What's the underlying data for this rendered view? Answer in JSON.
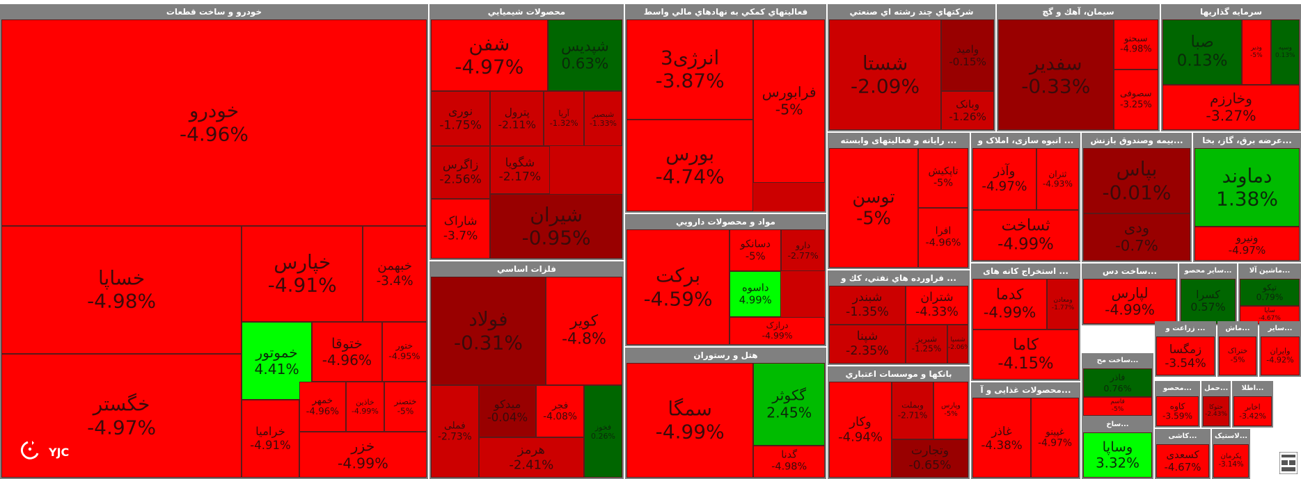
{
  "colors": {
    "header": "#808080",
    "neg_strong": "#ff0000",
    "neg_mid": "#cc0000",
    "neg_dark": "#990000",
    "pos_light": "#00ff00",
    "pos_mid": "#00bb00",
    "pos_dark": "#006600"
  },
  "logo": {
    "text": "YJC"
  },
  "chart_data": {
    "type": "treemap",
    "sectors": [
      {
        "name": "خودرو و ساخت قطعات",
        "items": [
          {
            "symbol": "خودرو",
            "change": "-4.96%",
            "value": -4.96
          },
          {
            "symbol": "خساپا",
            "change": "-4.98%",
            "value": -4.98
          },
          {
            "symbol": "خپارس",
            "change": "-4.91%",
            "value": -4.91
          },
          {
            "symbol": "خبهمن",
            "change": "-3.4%",
            "value": -3.4
          },
          {
            "symbol": "خگستر",
            "change": "-4.97%",
            "value": -4.97
          },
          {
            "symbol": "خموتور",
            "change": "4.41%",
            "value": 4.41
          },
          {
            "symbol": "ختوقا",
            "change": "-4.96%",
            "value": -4.96
          },
          {
            "symbol": "ختور",
            "change": "-4.95%",
            "value": -4.95
          },
          {
            "symbol": "خرامیا",
            "change": "-4.91%",
            "value": -4.91
          },
          {
            "symbol": "خمهر",
            "change": "-4.96%",
            "value": -4.96
          },
          {
            "symbol": "خاذین",
            "change": "-4.99%",
            "value": -4.99
          },
          {
            "symbol": "ختصنر",
            "change": "-5%",
            "value": -5
          },
          {
            "symbol": "خزر",
            "change": "-4.99%",
            "value": -4.99
          }
        ]
      },
      {
        "name": "محصولات شيميايي",
        "items": [
          {
            "symbol": "شفن",
            "change": "-4.97%",
            "value": -4.97
          },
          {
            "symbol": "شپدیس",
            "change": "0.63%",
            "value": 0.63
          },
          {
            "symbol": "نوری",
            "change": "-1.75%",
            "value": -1.75
          },
          {
            "symbol": "پترول",
            "change": "-2.11%",
            "value": -2.11
          },
          {
            "symbol": "آریا",
            "change": "-1.32%",
            "value": -1.32
          },
          {
            "symbol": "شبصیر",
            "change": "-1.33%",
            "value": -1.33
          },
          {
            "symbol": "شگویا",
            "change": "-2.17%",
            "value": -2.17
          },
          {
            "symbol": "زاگرس",
            "change": "-2.56%",
            "value": -2.56
          },
          {
            "symbol": "شاراک",
            "change": "-3.7%",
            "value": -3.7
          },
          {
            "symbol": "شیران",
            "change": "-0.95%",
            "value": -0.95
          }
        ]
      },
      {
        "name": "فعاليتهاي كمكي به نهادهاي مالي واسط",
        "items": [
          {
            "symbol": "انرژی3",
            "change": "-3.87%",
            "value": -3.87
          },
          {
            "symbol": "فرابورس",
            "change": "-5%",
            "value": -5
          },
          {
            "symbol": "بورس",
            "change": "-4.74%",
            "value": -4.74
          }
        ]
      },
      {
        "name": "شركتهاي چند رشته اي صنعتي",
        "items": [
          {
            "symbol": "شستا",
            "change": "-2.09%",
            "value": -2.09
          },
          {
            "symbol": "وامید",
            "change": "-0.15%",
            "value": -0.15
          },
          {
            "symbol": "وبانک",
            "change": "-1.26%",
            "value": -1.26
          }
        ]
      },
      {
        "name": "سيمان، آهك و گچ",
        "items": [
          {
            "symbol": "سفدیر",
            "change": "-0.33%",
            "value": -0.33
          },
          {
            "symbol": "سبحنو",
            "change": "-4.98%",
            "value": -4.98
          },
          {
            "symbol": "سصوفی",
            "change": "-3.25%",
            "value": -3.25
          }
        ]
      },
      {
        "name": "سرمايه گذاريها",
        "items": [
          {
            "symbol": "صبا",
            "change": "0.13%",
            "value": 0.13
          },
          {
            "symbol": "ودیر",
            "change": "-5%",
            "value": -5
          },
          {
            "symbol": "وسپه",
            "change": "0.13%",
            "value": 0.13
          },
          {
            "symbol": "وخارزم",
            "change": "-3.27%",
            "value": -3.27
          }
        ]
      },
      {
        "name": "مواد و محصولات دارويي",
        "items": [
          {
            "symbol": "برکت",
            "change": "-4.59%",
            "value": -4.59
          },
          {
            "symbol": "دارو",
            "change": "-2.77%",
            "value": -2.77
          },
          {
            "symbol": "دسانکو",
            "change": "-5%",
            "value": -5
          },
          {
            "symbol": "داسوه",
            "change": "4.99%",
            "value": 4.99
          },
          {
            "symbol": "درازک",
            "change": "-4.99%",
            "value": -4.99
          }
        ]
      },
      {
        "name": "هتل و رستوران",
        "items": [
          {
            "symbol": "سمگا",
            "change": "-4.99%",
            "value": -4.99
          },
          {
            "symbol": "گکوثر",
            "change": "2.45%",
            "value": 2.45
          },
          {
            "symbol": "گدنا",
            "change": "-4.98%",
            "value": -4.98
          }
        ]
      },
      {
        "name": "فلزات اساسي",
        "items": [
          {
            "symbol": "فولاد",
            "change": "-0.31%",
            "value": -0.31
          },
          {
            "symbol": "کویر",
            "change": "-4.8%",
            "value": -4.8
          },
          {
            "symbol": "فملی",
            "change": "-2.73%",
            "value": -2.73
          },
          {
            "symbol": "میدکو",
            "change": "-0.04%",
            "value": -0.04
          },
          {
            "symbol": "فجر",
            "change": "-4.08%",
            "value": -4.08
          },
          {
            "symbol": "فخوز",
            "change": "0.26%",
            "value": 0.26
          },
          {
            "symbol": "هرمز",
            "change": "-2.41%",
            "value": -2.41
          }
        ]
      },
      {
        "name": "رایانه و فعالیتهای وابسته ...",
        "items": [
          {
            "symbol": "توسن",
            "change": "-5%",
            "value": -5
          },
          {
            "symbol": "تاپکیش",
            "change": "-5%",
            "value": -5
          },
          {
            "symbol": "افرا",
            "change": "-4.96%",
            "value": -4.96
          }
        ]
      },
      {
        "name": "انبوه سازی، املاک و ...",
        "items": [
          {
            "symbol": "وآذر",
            "change": "-4.97%",
            "value": -4.97
          },
          {
            "symbol": "ثتران",
            "change": "-4.93%",
            "value": -4.93
          },
          {
            "symbol": "ثساخت",
            "change": "-4.99%",
            "value": -4.99
          }
        ]
      },
      {
        "name": "بیمه وصندوق بازنش...",
        "items": [
          {
            "symbol": "بپاس",
            "change": "-0.01%",
            "value": -0.01
          },
          {
            "symbol": "ودی",
            "change": "-0.7%",
            "value": -0.7
          }
        ]
      },
      {
        "name": "عرضه برق، گاز، بخا...",
        "items": [
          {
            "symbol": "دماوند",
            "change": "1.38%",
            "value": 1.38
          },
          {
            "symbol": "ونیرو",
            "change": "-4.97%",
            "value": -4.97
          }
        ]
      },
      {
        "name": "فراورده هاي نفتي، كك و ...",
        "items": [
          {
            "symbol": "شبندر",
            "change": "-1.35%",
            "value": -1.35
          },
          {
            "symbol": "شتران",
            "change": "-4.33%",
            "value": -4.33
          },
          {
            "symbol": "شپنا",
            "change": "-2.35%",
            "value": -2.35
          },
          {
            "symbol": "شبریز",
            "change": "-1.25%",
            "value": -1.25
          },
          {
            "symbol": "شسپا",
            "change": "-2.06%",
            "value": -2.06
          }
        ]
      },
      {
        "name": "بانكها و موسسات اعتباري",
        "items": [
          {
            "symbol": "وکار",
            "change": "-4.94%",
            "value": -4.94
          },
          {
            "symbol": "وبملت",
            "change": "-2.71%",
            "value": -2.71
          },
          {
            "symbol": "وپارس",
            "change": "-5%",
            "value": -5
          },
          {
            "symbol": "وتجارت",
            "change": "-0.65%",
            "value": -0.65
          }
        ]
      },
      {
        "name": "استخراج کانه های ...",
        "items": [
          {
            "symbol": "کدما",
            "change": "-4.99%",
            "value": -4.99
          },
          {
            "symbol": "ومعادن",
            "change": "-1.77%",
            "value": -1.77
          },
          {
            "symbol": "کاما",
            "change": "-4.15%",
            "value": -4.15
          }
        ]
      },
      {
        "name": "ساخت دس...",
        "items": [
          {
            "symbol": "لپارس",
            "change": "-4.99%",
            "value": -4.99
          }
        ]
      },
      {
        "name": "سایر محصو...",
        "items": [
          {
            "symbol": "کسرا",
            "change": "0.57%",
            "value": 0.57
          }
        ]
      },
      {
        "name": "ماشین آلا...",
        "items": [
          {
            "symbol": "تپکو",
            "change": "0.79%",
            "value": 0.79
          },
          {
            "symbol": "ساپا",
            "change": "-4.67%",
            "value": -4.67
          }
        ]
      },
      {
        "name": "ساخت مح...",
        "items": [
          {
            "symbol": "فاذر",
            "change": "0.76%",
            "value": 0.76
          },
          {
            "symbol": "قاسم",
            "change": "-5%",
            "value": -5
          }
        ]
      },
      {
        "name": "محصولات غذایی و آ...",
        "items": [
          {
            "symbol": "غاذر",
            "change": "-4.38%",
            "value": -4.38
          },
          {
            "symbol": "غپینو",
            "change": "-4.97%",
            "value": -4.97
          }
        ]
      },
      {
        "name": "زراعت و ...",
        "items": [
          {
            "symbol": "زمگسا",
            "change": "-3.54%",
            "value": -3.54
          }
        ]
      },
      {
        "name": "ماش...",
        "items": [
          {
            "symbol": "ختراک",
            "change": "-5%",
            "value": -5
          }
        ]
      },
      {
        "name": "سایر...",
        "items": [
          {
            "symbol": "وایران",
            "change": "-4.92%",
            "value": -4.92
          }
        ]
      },
      {
        "name": "محصو...",
        "items": [
          {
            "symbol": "کاوه",
            "change": "-3.59%",
            "value": -3.59
          }
        ]
      },
      {
        "name": "حمل...",
        "items": [
          {
            "symbol": "حتوکا",
            "change": "-2.43%",
            "value": -2.43
          }
        ]
      },
      {
        "name": "اطلا...",
        "items": [
          {
            "symbol": "اخابر",
            "change": "-3.42%",
            "value": -3.42
          }
        ]
      },
      {
        "name": "ساخ...",
        "items": [
          {
            "symbol": "وساپا",
            "change": "3.32%",
            "value": 3.32
          }
        ]
      },
      {
        "name": "کاشی...",
        "items": [
          {
            "symbol": "کسعدی",
            "change": "-4.67%",
            "value": -4.67
          }
        ]
      },
      {
        "name": "لاستیک...",
        "items": [
          {
            "symbol": "پکرمان",
            "change": "-3.14%",
            "value": -3.14
          }
        ]
      }
    ]
  }
}
